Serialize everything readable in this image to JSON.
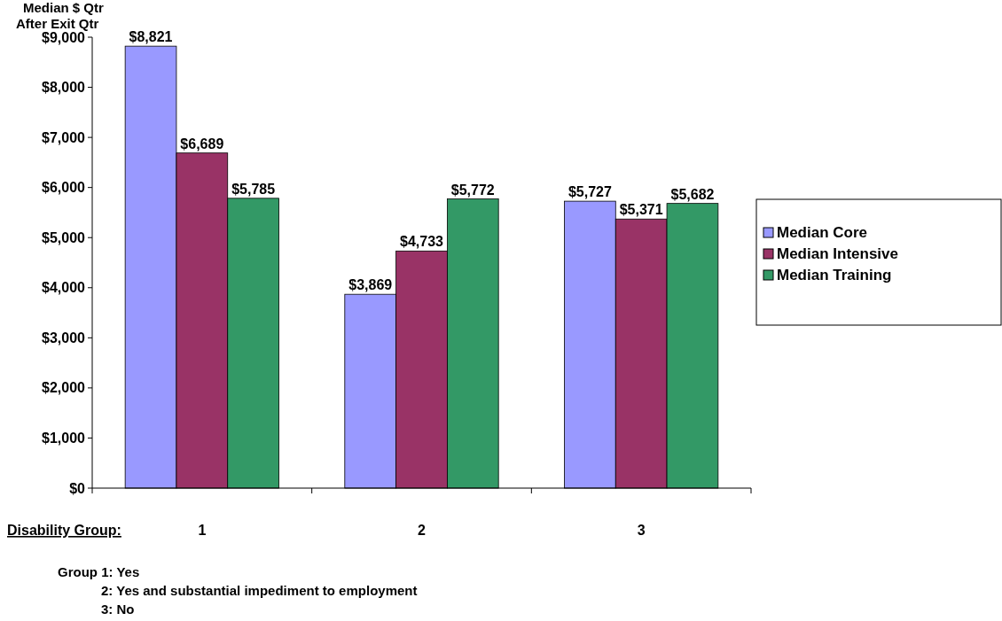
{
  "chart_data": {
    "type": "bar",
    "ylabel": "Median $  Qtr\nAfter Exit Qtr",
    "xlabel": "Disability Group:",
    "categories": [
      "1",
      "2",
      "3"
    ],
    "series": [
      {
        "name": "Median Core",
        "color": "#9999ff",
        "values": [
          8821,
          3869,
          5727
        ],
        "value_labels": [
          "$8,821",
          "$3,869",
          "$5,727"
        ]
      },
      {
        "name": "Median Intensive",
        "color": "#993366",
        "values": [
          6689,
          4733,
          5371
        ],
        "value_labels": [
          "$6,689",
          "$4,733",
          "$5,371"
        ]
      },
      {
        "name": "Median Training",
        "color": "#339966",
        "values": [
          5785,
          5772,
          5682
        ],
        "value_labels": [
          "$5,785",
          "$5,772",
          "$5,682"
        ]
      }
    ],
    "ylim": [
      0,
      9000
    ],
    "yticks": [
      {
        "value": 0,
        "label": "$0"
      },
      {
        "value": 1000,
        "label": "$1,000"
      },
      {
        "value": 2000,
        "label": "$2,000"
      },
      {
        "value": 3000,
        "label": "$3,000"
      },
      {
        "value": 4000,
        "label": "$4,000"
      },
      {
        "value": 5000,
        "label": "$5,000"
      },
      {
        "value": 6000,
        "label": "$6,000"
      },
      {
        "value": 7000,
        "label": "$7,000"
      },
      {
        "value": 8000,
        "label": "$8,000"
      },
      {
        "value": 9000,
        "label": "$9,000"
      }
    ],
    "grid": false,
    "legend": "right",
    "annotations": [
      "Group 1:  Yes",
      "2:  Yes and substantial impediment to employment",
      "3:  No"
    ]
  }
}
